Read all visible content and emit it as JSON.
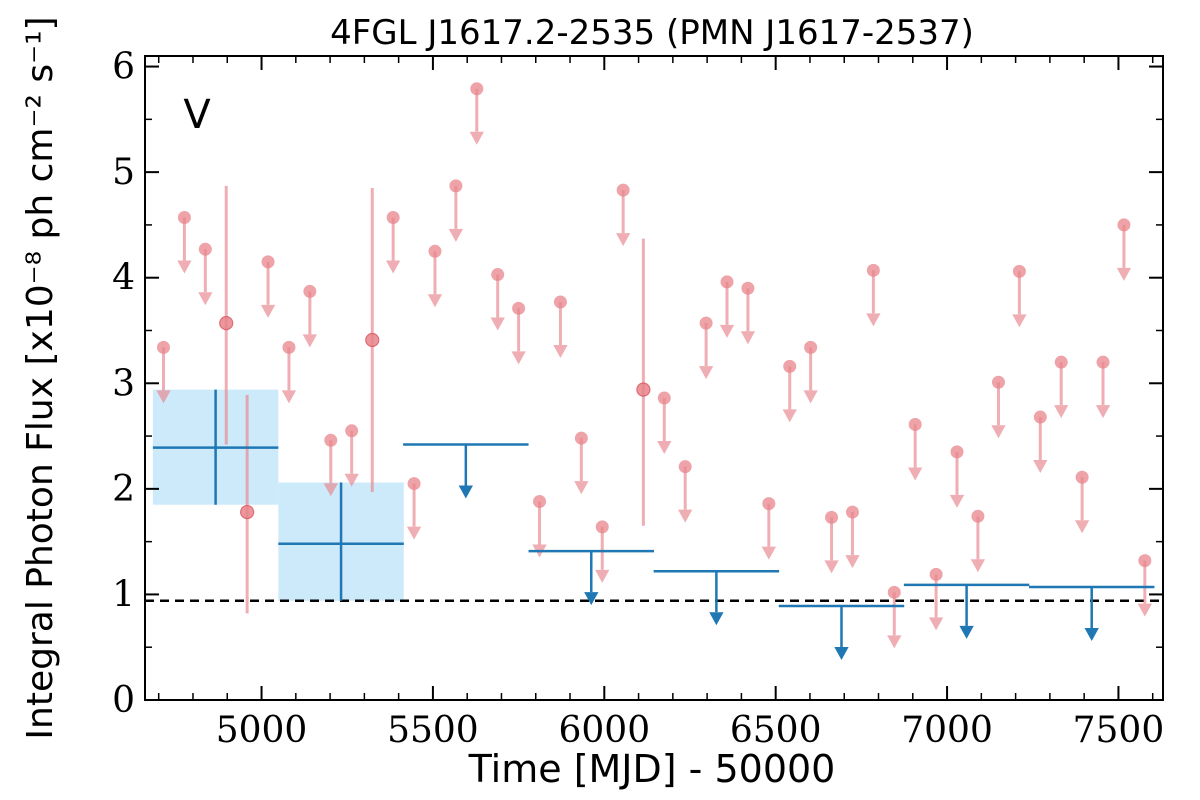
{
  "chart_data": {
    "type": "scatter",
    "title": "4FGL J1617.2-2535 (PMN J1617-2537)",
    "xlabel": "Time [MJD] - 50000",
    "ylabel": "Integral Photon Flux [x10⁻⁸ ph cm⁻² s⁻¹]",
    "annotation": "V",
    "xlim": [
      4660,
      7630
    ],
    "ylim": [
      0,
      6.1
    ],
    "xticks": [
      5000,
      5500,
      6000,
      6500,
      7000,
      7500
    ],
    "yticks": [
      0,
      1,
      2,
      3,
      4,
      5,
      6
    ],
    "grid": false,
    "colors": {
      "short_bins": "#e8848b",
      "long_bins": "#1f77b4",
      "long_bins_band": "#cdeafb",
      "reference_line": "#000000"
    },
    "reference_line": {
      "value": 0.94,
      "style": "dashed"
    },
    "long_bins": {
      "detections": [
        {
          "x": 4866,
          "xerr": 183,
          "y": 2.39,
          "ylo": 1.85,
          "yhi": 2.94
        },
        {
          "x": 5232,
          "xerr": 183,
          "y": 1.48,
          "ylo": 0.94,
          "yhi": 2.06
        }
      ],
      "upper_limits": [
        {
          "x": 5596,
          "xerr": 183,
          "y": 2.42
        },
        {
          "x": 5962,
          "xerr": 183,
          "y": 1.41
        },
        {
          "x": 6327,
          "xerr": 183,
          "y": 1.22
        },
        {
          "x": 6692,
          "xerr": 183,
          "y": 0.89
        },
        {
          "x": 7057,
          "xerr": 183,
          "y": 1.09
        },
        {
          "x": 7422,
          "xerr": 183,
          "y": 1.07
        }
      ]
    },
    "short_bins": {
      "detections": [
        {
          "x": 4897,
          "y": 3.57,
          "ylo": 2.42,
          "yhi": 4.87
        },
        {
          "x": 4958,
          "y": 1.78,
          "ylo": 0.82,
          "yhi": 2.89
        },
        {
          "x": 5323,
          "y": 3.41,
          "ylo": 1.97,
          "yhi": 4.85
        },
        {
          "x": 6114,
          "y": 2.94,
          "ylo": 1.65,
          "yhi": 4.37
        }
      ],
      "upper_limits": [
        {
          "x": 4714,
          "y": 3.34
        },
        {
          "x": 4775,
          "y": 4.57
        },
        {
          "x": 4836,
          "y": 4.27
        },
        {
          "x": 5019,
          "y": 4.15
        },
        {
          "x": 5080,
          "y": 3.34
        },
        {
          "x": 5141,
          "y": 3.87
        },
        {
          "x": 5202,
          "y": 2.46
        },
        {
          "x": 5263,
          "y": 2.55
        },
        {
          "x": 5384,
          "y": 4.57
        },
        {
          "x": 5445,
          "y": 2.05
        },
        {
          "x": 5506,
          "y": 4.25
        },
        {
          "x": 5567,
          "y": 4.87
        },
        {
          "x": 5628,
          "y": 5.79
        },
        {
          "x": 5689,
          "y": 4.03
        },
        {
          "x": 5750,
          "y": 3.71
        },
        {
          "x": 5811,
          "y": 1.88
        },
        {
          "x": 5872,
          "y": 3.77
        },
        {
          "x": 5933,
          "y": 2.48
        },
        {
          "x": 5994,
          "y": 1.64
        },
        {
          "x": 6055,
          "y": 4.83
        },
        {
          "x": 6175,
          "y": 2.86
        },
        {
          "x": 6236,
          "y": 2.21
        },
        {
          "x": 6297,
          "y": 3.57
        },
        {
          "x": 6358,
          "y": 3.96
        },
        {
          "x": 6419,
          "y": 3.9
        },
        {
          "x": 6480,
          "y": 1.86
        },
        {
          "x": 6541,
          "y": 3.16
        },
        {
          "x": 6602,
          "y": 3.34
        },
        {
          "x": 6663,
          "y": 1.73
        },
        {
          "x": 6724,
          "y": 1.78
        },
        {
          "x": 6785,
          "y": 4.07
        },
        {
          "x": 6846,
          "y": 1.02
        },
        {
          "x": 6907,
          "y": 2.61
        },
        {
          "x": 6968,
          "y": 1.19
        },
        {
          "x": 7029,
          "y": 2.35
        },
        {
          "x": 7090,
          "y": 1.74
        },
        {
          "x": 7150,
          "y": 3.01
        },
        {
          "x": 7211,
          "y": 4.06
        },
        {
          "x": 7272,
          "y": 2.68
        },
        {
          "x": 7333,
          "y": 3.2
        },
        {
          "x": 7394,
          "y": 2.11
        },
        {
          "x": 7455,
          "y": 3.2
        },
        {
          "x": 7516,
          "y": 4.5
        },
        {
          "x": 7577,
          "y": 1.32
        }
      ]
    }
  }
}
